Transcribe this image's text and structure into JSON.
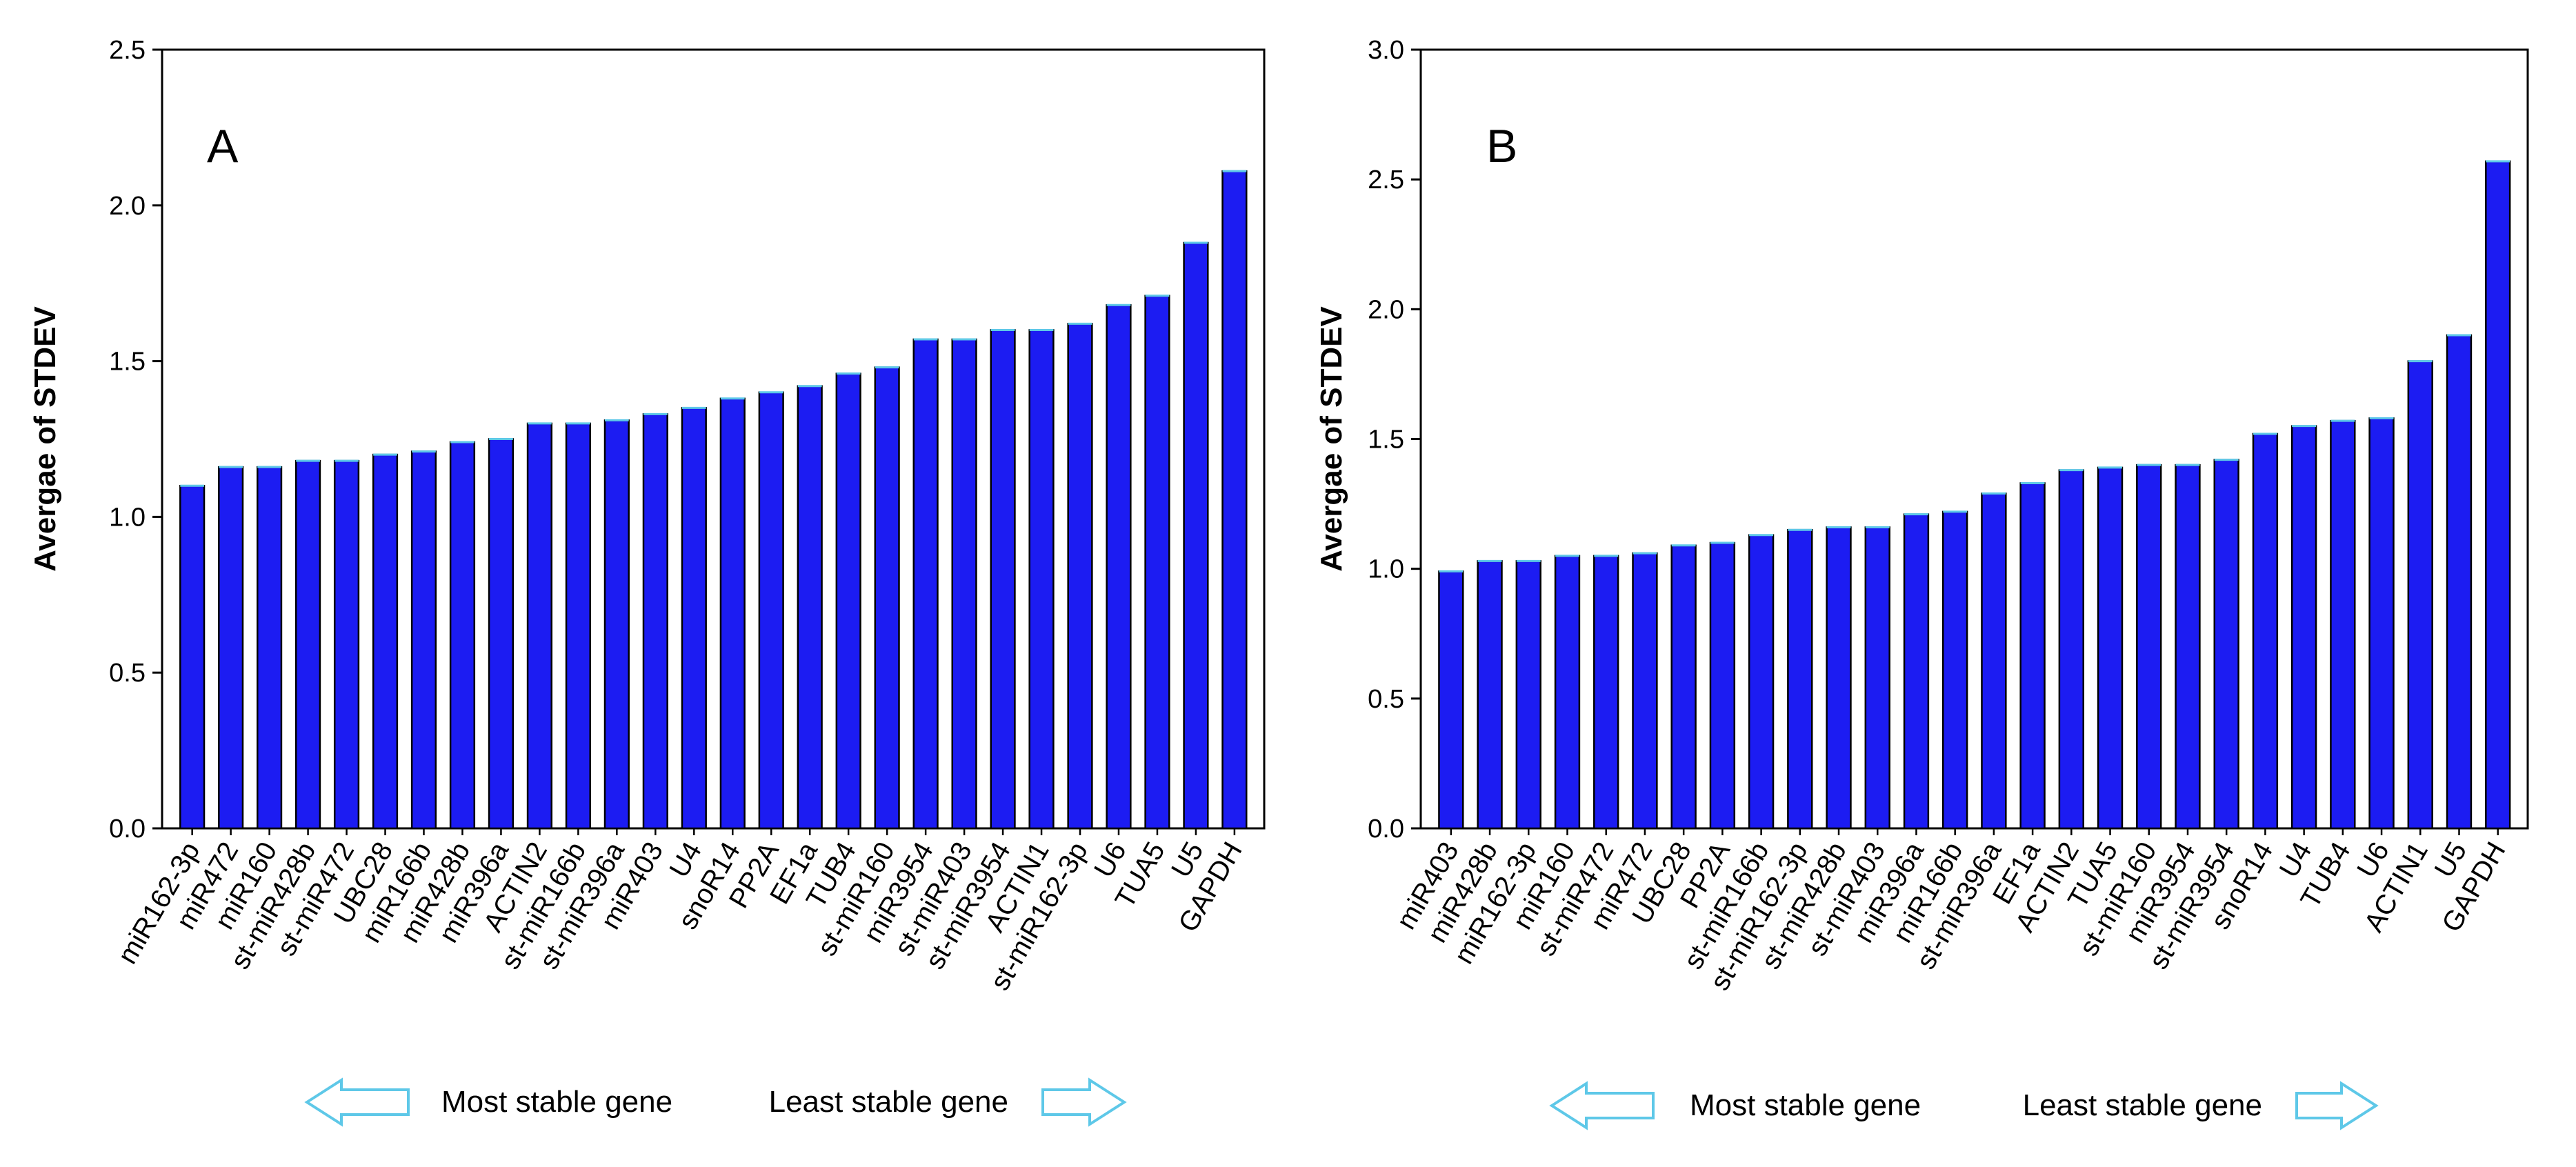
{
  "colors": {
    "bar": "#1c1cf2",
    "bar_edge": "#000000",
    "arrow": "#5ec8e8",
    "axis": "#000000"
  },
  "chart_data": [
    {
      "type": "bar",
      "panel_label": "A",
      "title": "",
      "xlabel": "",
      "ylabel": "Avergae of STDEV",
      "ylim": [
        0,
        2.5
      ],
      "yticks": [
        0.0,
        0.5,
        1.0,
        1.5,
        2.0,
        2.5
      ],
      "ytick_labels": [
        "0.0",
        "0.5",
        "1.0",
        "1.5",
        "2.0",
        "2.5"
      ],
      "grid": false,
      "categories": [
        "miR162-3p",
        "miR472",
        "miR160",
        "st-miR428b",
        "st-miR472",
        "UBC28",
        "miR166b",
        "miR428b",
        "miR396a",
        "ACTIN2",
        "st-miR166b",
        "st-miR396a",
        "miR403",
        "U4",
        "snoR14",
        "PP2A",
        "EF1a",
        "TUB4",
        "st-miR160",
        "miR3954",
        "st-miR403",
        "st-miR3954",
        "ACTIN1",
        "st-miR162-3p",
        "U6",
        "TUA5",
        "U5",
        "GAPDH"
      ],
      "values": [
        1.1,
        1.16,
        1.16,
        1.18,
        1.18,
        1.2,
        1.21,
        1.24,
        1.25,
        1.3,
        1.3,
        1.31,
        1.33,
        1.35,
        1.38,
        1.4,
        1.42,
        1.46,
        1.48,
        1.57,
        1.57,
        1.6,
        1.6,
        1.62,
        1.68,
        1.71,
        1.88,
        2.11
      ],
      "legend": {
        "left_text": "Most stable gene",
        "right_text": "Least stable gene"
      }
    },
    {
      "type": "bar",
      "panel_label": "B",
      "title": "",
      "xlabel": "",
      "ylabel": "Avergae of STDEV",
      "ylim": [
        0,
        3.0
      ],
      "yticks": [
        0.0,
        0.5,
        1.0,
        1.5,
        2.0,
        2.5,
        3.0
      ],
      "ytick_labels": [
        "0.0",
        "0.5",
        "1.0",
        "1.5",
        "2.0",
        "2.5",
        "3.0"
      ],
      "grid": false,
      "categories": [
        "miR403",
        "miR428b",
        "miR162-3p",
        "miR160",
        "st-miR472",
        "miR472",
        "UBC28",
        "PP2A",
        "st-miR166b",
        "st-miR162-3p",
        "st-miR428b",
        "st-miR403",
        "miR396a",
        "miR166b",
        "st-miR396a",
        "EF1a",
        "ACTIN2",
        "TUA5",
        "st-miR160",
        "miR3954",
        "st-miR3954",
        "snoR14",
        "U4",
        "TUB4",
        "U6",
        "ACTIN1",
        "U5",
        "GAPDH"
      ],
      "values": [
        0.99,
        1.03,
        1.03,
        1.05,
        1.05,
        1.06,
        1.09,
        1.1,
        1.13,
        1.15,
        1.16,
        1.16,
        1.21,
        1.22,
        1.29,
        1.33,
        1.38,
        1.39,
        1.4,
        1.4,
        1.42,
        1.52,
        1.55,
        1.57,
        1.58,
        1.8,
        1.9,
        2.57
      ],
      "legend": {
        "left_text": "Most stable gene",
        "right_text": "Least stable gene"
      }
    }
  ]
}
